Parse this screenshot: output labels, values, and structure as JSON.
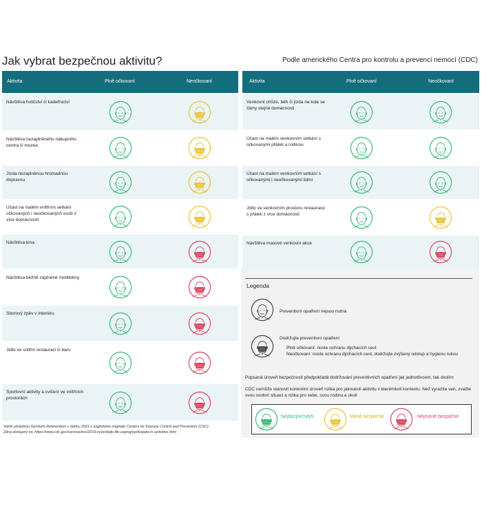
{
  "title": "Jak vybrat bezpečnou aktivitu?",
  "subtitle": "Podle amerického Centra pro kontrolu a prevenci nemocí (CDC)",
  "colors": {
    "header": "#146d7d",
    "green": "#3cb878",
    "yellow": "#e8c53a",
    "red": "#d9455f",
    "gray": "#444444"
  },
  "table_headers": {
    "activity": "Aktivita",
    "vaccinated": "Plně očkovaní",
    "unvaccinated": "Neočkovaní"
  },
  "left_rows": [
    {
      "activity": "Návštěva holičství či kadeřnictví",
      "vaccinated": "green",
      "unvaccinated": "yellow"
    },
    {
      "activity": "Návštěva nezaplněného nákupního centra či muzea",
      "vaccinated": "green",
      "unvaccinated": "yellow"
    },
    {
      "activity": "Jízda nezaplněnou hromadnou dopravou",
      "vaccinated": "green",
      "unvaccinated": "yellow"
    },
    {
      "activity": "Účast na malém vnitřním setkání očkovaných i neočkovaných osob z více domácností",
      "vaccinated": "green",
      "unvaccinated": "yellow"
    },
    {
      "activity": "Návštěva kina",
      "vaccinated": "green",
      "unvaccinated": "red"
    },
    {
      "activity": "Návštěva běžně zaplněné motlitebny",
      "vaccinated": "green",
      "unvaccinated": "red"
    },
    {
      "activity": "Sborový zpěv v interiéru",
      "vaccinated": "green",
      "unvaccinated": "red"
    },
    {
      "activity": "Jídlo ve vnitřní restauraci či baru",
      "vaccinated": "green",
      "unvaccinated": "red"
    },
    {
      "activity": "Sportovní aktivity a cvičení ve vnitřních prostorách",
      "vaccinated": "green",
      "unvaccinated": "red"
    }
  ],
  "right_rows": [
    {
      "activity": "Venkovní chůze, běh či jízda na kole se členy stejné domácnosti",
      "vaccinated": "green",
      "unvaccinated": "green"
    },
    {
      "activity": "Účast na malém venkovním setkání s očkovanými přáteli a rodinou",
      "vaccinated": "green",
      "unvaccinated": "green"
    },
    {
      "activity": "Účast na malém venkovním setkání s očkovanými i neočkovanými lidmi",
      "vaccinated": "green",
      "unvaccinated": "green"
    },
    {
      "activity": "Jídlo ve venkovním prostoru restaurace s přáteli z více domácností",
      "vaccinated": "green",
      "unvaccinated": "yellow"
    },
    {
      "activity": "Návštěva masové venkovní akce",
      "vaccinated": "green",
      "unvaccinated": "red"
    }
  ],
  "legend": {
    "title": "Legenda",
    "no_measures": "Preventivní opatření nejsou nutná",
    "keep_measures": "Dodržujte preventivní opatření",
    "vaccinated_note": "Plně očkovaní: noste ochranu dýchacích cest",
    "unvaccinated_note": "Neočkovaní: noste ochranu dýchacích cest, dodržujte zvýšený odstup a hygienu rukou",
    "assumption": "Popsaná úroveň bezpečnosti předpokládá dodržování preventivních opatření jak jednotlivcem, tak okolím",
    "cdc_note": "CDC nemůže stanovit konkrétní úroveň rizika pro jakoukoli aktivitu v kterémkoli kontextu. Než vyrazíte ven, zvažte svou osobní situaci a rizika pro sebe, svou rodinu a okolí",
    "safest": "Nejbezpečnější",
    "less_safe": "Méně bezpečné",
    "least_safe": "Nejméně bezpečné"
  },
  "footnote": {
    "line1": "Volně přeloženo Deníkem Referendum v dubnu 2021 z anglického originálu Centers for Disease Control and Prevention (CDC)",
    "line2": "Zdroj dostupný na: https://www.cdc.gov/coronavirus/2019-ncov/daily-life-coping/participate-in-activities.html"
  }
}
